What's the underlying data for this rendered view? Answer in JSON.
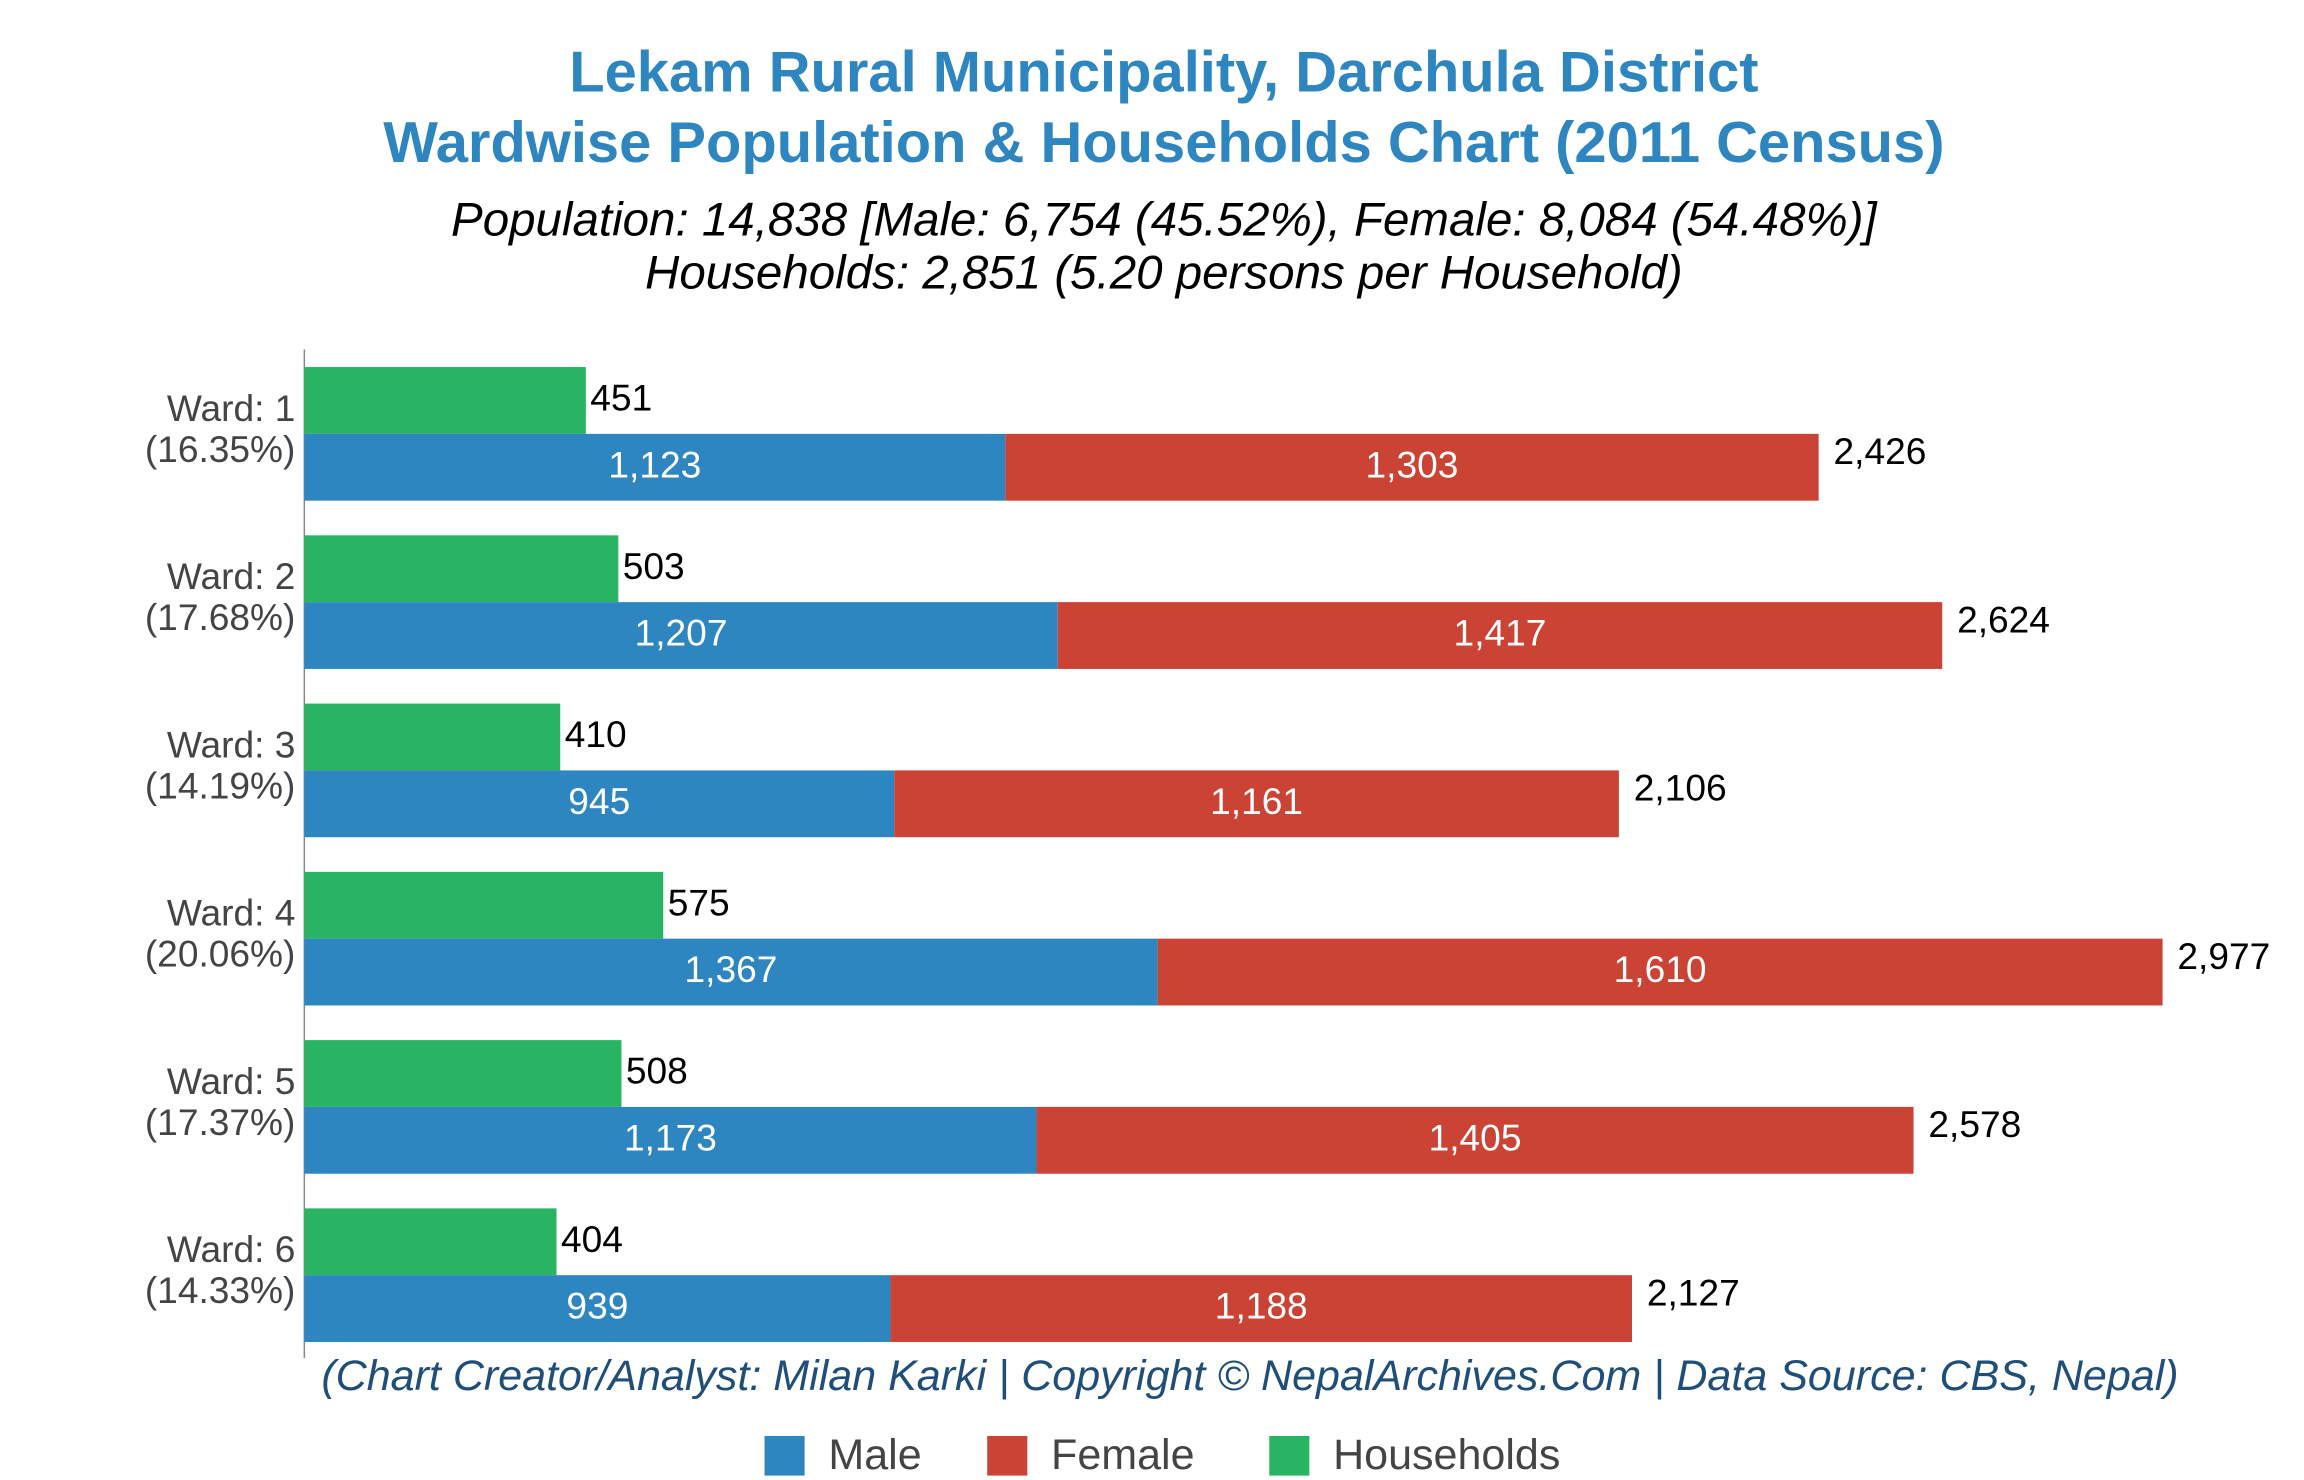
{
  "chart_data": {
    "type": "bar",
    "orientation": "horizontal",
    "title": [
      "Lekam Rural Municipality, Darchula District",
      "Wardwise Population & Households Chart (2011 Census)"
    ],
    "subtitle": [
      "Population: 14,838 [Male: 6,754 (45.52%), Female: 8,084 (54.48%)]",
      "Households: 2,851 (5.20 persons per Household)"
    ],
    "caption": "(Chart Creator/Analyst: Milan Karki | Copyright © NepalArchives.Com | Data Source: CBS, Nepal)",
    "categories": [
      "Ward: 1",
      "Ward: 2",
      "Ward: 3",
      "Ward: 4",
      "Ward: 5",
      "Ward: 6"
    ],
    "category_shares": [
      "(16.35%)",
      "(17.68%)",
      "(14.19%)",
      "(20.06%)",
      "(17.37%)",
      "(14.33%)"
    ],
    "series": [
      {
        "name": "Male",
        "color": "#2e86c1",
        "values": [
          1123,
          1207,
          945,
          1367,
          1173,
          939
        ],
        "value_labels": [
          "1,123",
          "1,207",
          "945",
          "1,367",
          "1,173",
          "939"
        ]
      },
      {
        "name": "Female",
        "color": "#cb4335",
        "values": [
          1303,
          1417,
          1161,
          1610,
          1405,
          1188
        ],
        "value_labels": [
          "1,303",
          "1,417",
          "1,161",
          "1,610",
          "1,405",
          "1,188"
        ]
      },
      {
        "name": "Households",
        "color": "#28b463",
        "values": [
          451,
          503,
          410,
          575,
          508,
          404
        ],
        "value_labels": [
          "451",
          "503",
          "410",
          "575",
          "508",
          "404"
        ]
      }
    ],
    "totals": [
      2426,
      2624,
      2106,
      2977,
      2578,
      2127
    ],
    "total_labels": [
      "2,426",
      "2,624",
      "2,106",
      "2,977",
      "2,578",
      "2,127"
    ],
    "xlim": [
      0,
      3175
    ],
    "legend": "bottom"
  }
}
